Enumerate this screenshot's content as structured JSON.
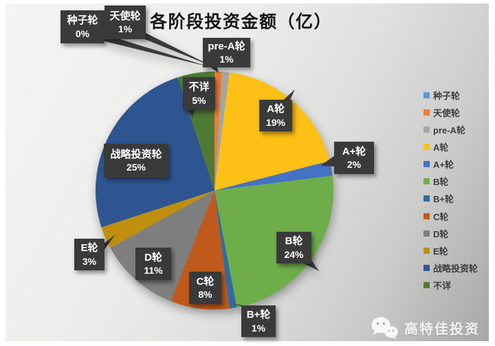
{
  "chart_data": {
    "type": "pie",
    "title": "各阶段投资金额（亿）",
    "unit": "percent",
    "labels": [
      "种子轮",
      "天使轮",
      "pre-A轮",
      "A轮",
      "A+轮",
      "B轮",
      "B+轮",
      "C轮",
      "D轮",
      "E轮",
      "战略投资轮",
      "不详"
    ],
    "values": [
      0,
      1,
      1,
      19,
      2,
      24,
      1,
      8,
      11,
      3,
      25,
      5
    ],
    "colors": [
      "#5B9BD5",
      "#ED7D31",
      "#A5A5A5",
      "#FCC017",
      "#4472C4",
      "#6FAD4B",
      "#2E6DA4",
      "#BF5A1C",
      "#7E7E7E",
      "#BF8F0E",
      "#2F5591",
      "#4E7A33"
    ],
    "slugs": [
      "seed-round",
      "angel-round",
      "pre-a-round",
      "a-round",
      "a-plus-round",
      "b-round",
      "b-plus-round",
      "c-round",
      "d-round",
      "e-round",
      "strategic-round",
      "unknown"
    ],
    "legend_position": "right",
    "start_angle_deg": -90,
    "direction": "clockwise",
    "data_label_style": "dark-callout-boxes",
    "label_box_color": "#3A3A3A",
    "label_text_color": "#FFFFFF"
  },
  "watermark": {
    "text": "高特佳投资",
    "icon": "wechat-icon"
  }
}
